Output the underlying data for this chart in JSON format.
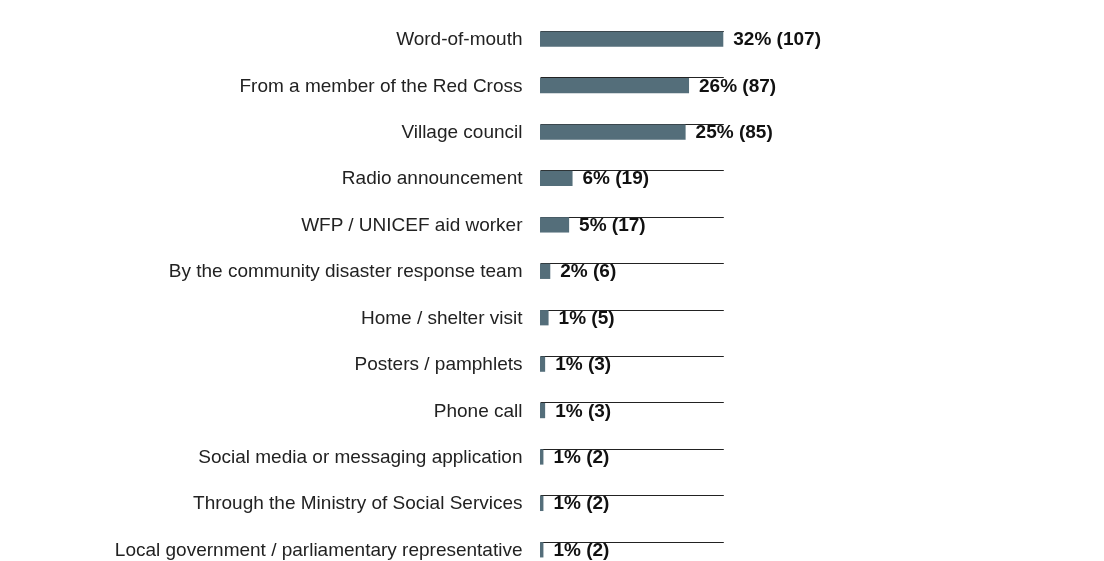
{
  "chart_data": {
    "type": "bar",
    "orientation": "horizontal",
    "grid": "y",
    "color": "#546e7a",
    "categories": [
      "Word-of-mouth",
      "From a member of the Red Cross",
      "Village council",
      "Radio announcement",
      "WFP / UNICEF aid worker",
      "By the community disaster response team",
      "Home / shelter visit",
      "Posters / pamphlets",
      "Phone call",
      "Social media or messaging application",
      "Through the Ministry of Social Services",
      "Local government / parliamentary representative"
    ],
    "values": [
      107,
      87,
      85,
      19,
      17,
      6,
      5,
      3,
      3,
      2,
      2,
      2
    ],
    "value_labels": [
      "32% (107)",
      "26% (87)",
      "25% (85)",
      "6% (19)",
      "5% (17)",
      "2% (6)",
      "1% (5)",
      "1% (3)",
      "1% (3)",
      "1% (2)",
      "1% (2)",
      "1% (2)"
    ]
  }
}
